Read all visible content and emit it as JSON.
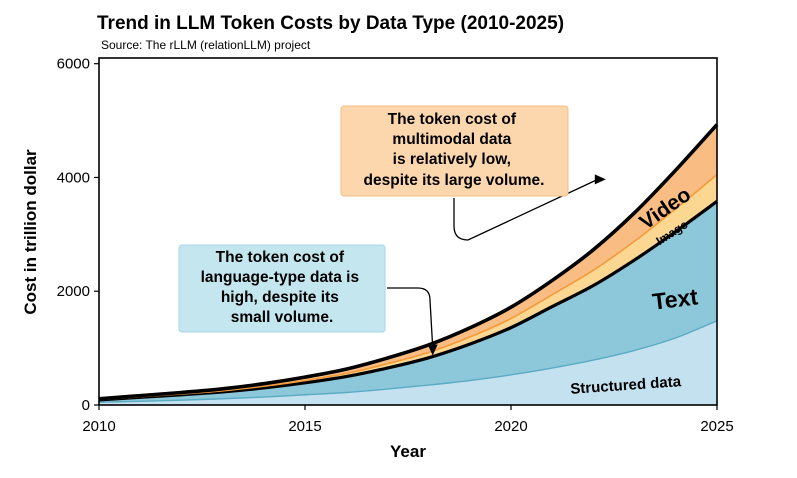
{
  "chart_data": {
    "type": "area",
    "title": "Trend in LLM Token Costs by Data Type (2010-2025)",
    "subtitle": "Source: The rLLM (relationLLM) project",
    "xlabel": "Year",
    "ylabel": "Cost in trillion dollar",
    "xlim": [
      2010,
      2025
    ],
    "ylim": [
      0,
      6100
    ],
    "x_ticks": [
      "2010",
      "2015",
      "2020",
      "2025"
    ],
    "y_ticks": [
      "0",
      "2000",
      "4000",
      "6000"
    ],
    "stacked": true,
    "x": [
      2010,
      2011,
      2012,
      2013,
      2014,
      2015,
      2016,
      2017,
      2018,
      2019,
      2020,
      2021,
      2022,
      2023,
      2024,
      2025
    ],
    "series": [
      {
        "name": "Structured data",
        "color": "#c4e1ef",
        "values": [
          50,
          65,
          85,
          110,
          140,
          180,
          220,
          280,
          350,
          430,
          530,
          650,
          790,
          960,
          1180,
          1480
        ]
      },
      {
        "name": "Text",
        "color": "#8dc8da",
        "values": [
          40,
          70,
          95,
          120,
          160,
          210,
          280,
          370,
          480,
          640,
          830,
          1080,
          1310,
          1590,
          1870,
          2100
        ]
      },
      {
        "name": "Image",
        "color": "#fcd792",
        "values": [
          5,
          10,
          15,
          20,
          30,
          40,
          55,
          75,
          95,
          125,
          160,
          210,
          270,
          330,
          400,
          470
        ]
      },
      {
        "name": "Video",
        "color": "#f9bd84",
        "values": [
          15,
          20,
          25,
          35,
          45,
          60,
          75,
          100,
          130,
          160,
          200,
          250,
          360,
          500,
          680,
          880
        ]
      }
    ],
    "series_labels": {
      "video": "Video",
      "image": "Image",
      "text": "Text",
      "structured": "Structured data"
    },
    "annotations": [
      {
        "id": "multimodal",
        "lines": [
          "The token cost of",
          "multimodal data",
          "is relatively low,",
          "despite its large volume."
        ],
        "color": "#fcd7ad",
        "arrow_target": [
          2022.3,
          3650
        ]
      },
      {
        "id": "language",
        "lines": [
          "The token cost of",
          "language-type data is",
          "high, despite its",
          "small volume."
        ],
        "color": "#c4e6ef",
        "arrow_target": [
          2018.1,
          870
        ]
      }
    ],
    "grid": false
  }
}
